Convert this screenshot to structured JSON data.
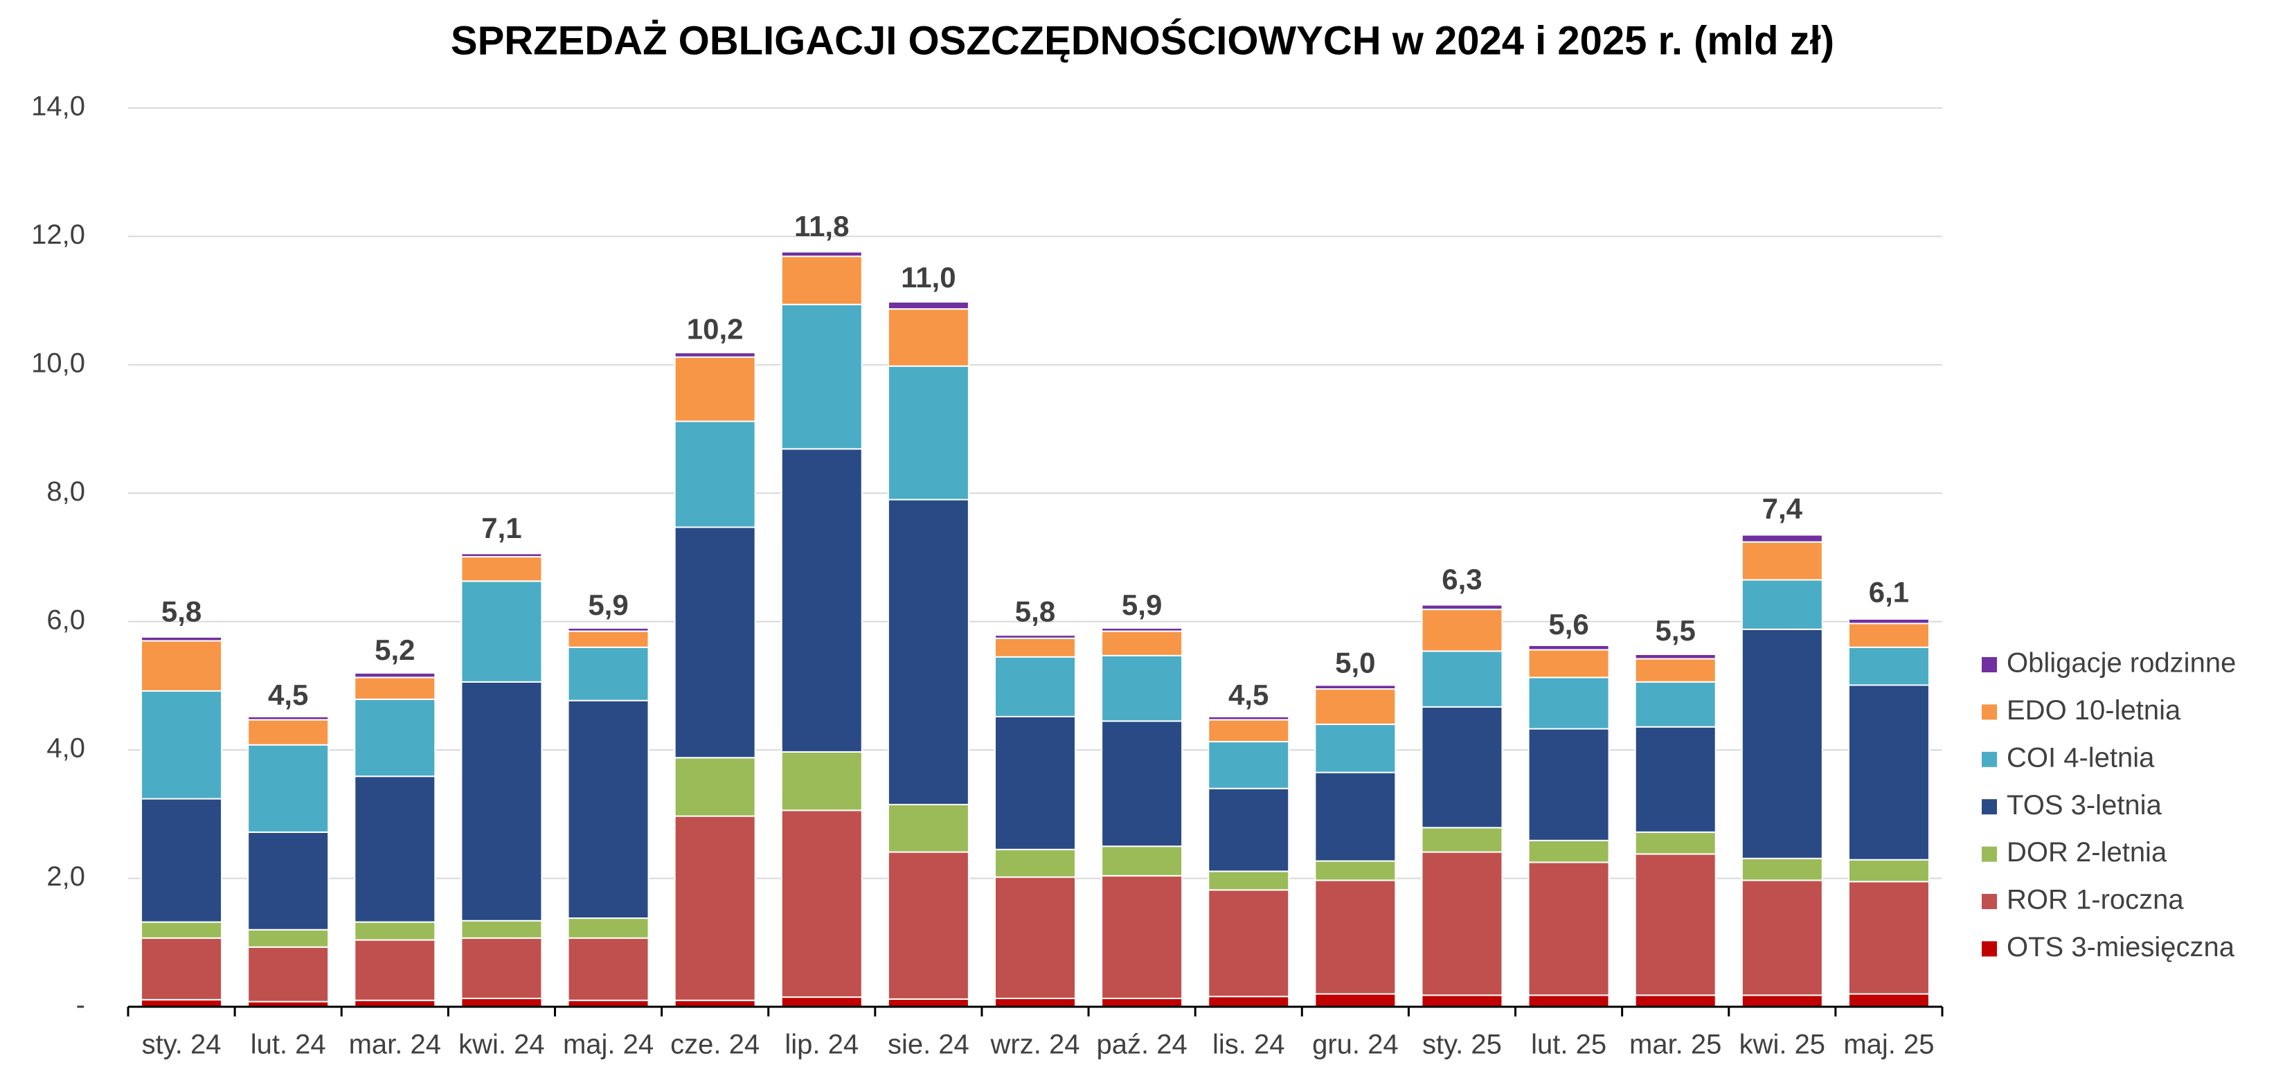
{
  "chart_data": {
    "type": "stacked_bar",
    "title": "SPRZEDAŻ OBLIGACJI OSZCZĘDNOŚCIOWYCH w 2024 i 2025 r. (mld zł)",
    "categories": [
      "sty. 24",
      "lut. 24",
      "mar. 24",
      "kwi. 24",
      "maj. 24",
      "cze. 24",
      "lip. 24",
      "sie. 24",
      "wrz. 24",
      "paź. 24",
      "lis. 24",
      "gru. 24",
      "sty. 25",
      "lut. 25",
      "mar. 25",
      "kwi. 25",
      "maj. 25"
    ],
    "series": [
      {
        "name": "OTS 3-miesięczna",
        "color": "#c00000",
        "values": [
          0.11,
          0.08,
          0.1,
          0.13,
          0.1,
          0.1,
          0.15,
          0.12,
          0.13,
          0.13,
          0.16,
          0.2,
          0.18,
          0.18,
          0.18,
          0.18,
          0.2
        ]
      },
      {
        "name": "ROR 1-roczna",
        "color": "#c0504d",
        "values": [
          0.96,
          0.85,
          0.94,
          0.94,
          0.97,
          2.87,
          2.91,
          2.29,
          1.89,
          1.91,
          1.66,
          1.77,
          2.23,
          2.07,
          2.2,
          1.79,
          1.75
        ]
      },
      {
        "name": "DOR 2-letnia",
        "color": "#9bbb59",
        "values": [
          0.25,
          0.27,
          0.28,
          0.27,
          0.31,
          0.91,
          0.91,
          0.74,
          0.43,
          0.46,
          0.29,
          0.3,
          0.38,
          0.34,
          0.34,
          0.34,
          0.34
        ]
      },
      {
        "name": "TOS 3-letnia",
        "color": "#2a4a86",
        "values": [
          1.92,
          1.52,
          2.27,
          3.72,
          3.39,
          3.59,
          4.72,
          4.75,
          2.07,
          1.95,
          1.29,
          1.38,
          1.88,
          1.74,
          1.64,
          3.57,
          2.72
        ]
      },
      {
        "name": "COI 4-letnia",
        "color": "#4bacc6",
        "values": [
          1.68,
          1.36,
          1.2,
          1.57,
          0.83,
          1.65,
          2.25,
          2.08,
          0.93,
          1.02,
          0.73,
          0.75,
          0.87,
          0.8,
          0.7,
          0.77,
          0.59
        ]
      },
      {
        "name": "EDO 10-letnia",
        "color": "#f79646",
        "values": [
          0.78,
          0.39,
          0.34,
          0.38,
          0.25,
          1.0,
          0.75,
          0.89,
          0.29,
          0.38,
          0.34,
          0.55,
          0.65,
          0.43,
          0.36,
          0.59,
          0.37
        ]
      },
      {
        "name": "Obligacje rodzinne",
        "color": "#7030a0",
        "values": [
          0.06,
          0.05,
          0.07,
          0.05,
          0.05,
          0.07,
          0.07,
          0.11,
          0.05,
          0.05,
          0.05,
          0.06,
          0.07,
          0.07,
          0.07,
          0.11,
          0.07
        ]
      }
    ],
    "totals": {
      "values": [
        5.8,
        4.5,
        5.2,
        7.1,
        5.9,
        10.2,
        11.8,
        11.0,
        5.8,
        5.9,
        4.5,
        5.0,
        6.3,
        5.6,
        5.5,
        7.4,
        6.1
      ],
      "value_labels": [
        "5,8",
        "4,5",
        "5,2",
        "7,1",
        "5,9",
        "10,2",
        "11,8",
        "11,0",
        "5,8",
        "5,9",
        "4,5",
        "5,0",
        "6,3",
        "5,6",
        "5,5",
        "7,4",
        "6,1"
      ]
    },
    "ylim": [
      0,
      14
    ],
    "yticks": [
      {
        "value": 0,
        "label": "-"
      },
      {
        "value": 2,
        "label": "2,0"
      },
      {
        "value": 4,
        "label": "4,0"
      },
      {
        "value": 6,
        "label": "6,0"
      },
      {
        "value": 8,
        "label": "8,0"
      },
      {
        "value": 10,
        "label": "10,0"
      },
      {
        "value": 12,
        "label": "12,0"
      },
      {
        "value": 14,
        "label": "14,0"
      }
    ],
    "grid": true,
    "legend": "right"
  }
}
